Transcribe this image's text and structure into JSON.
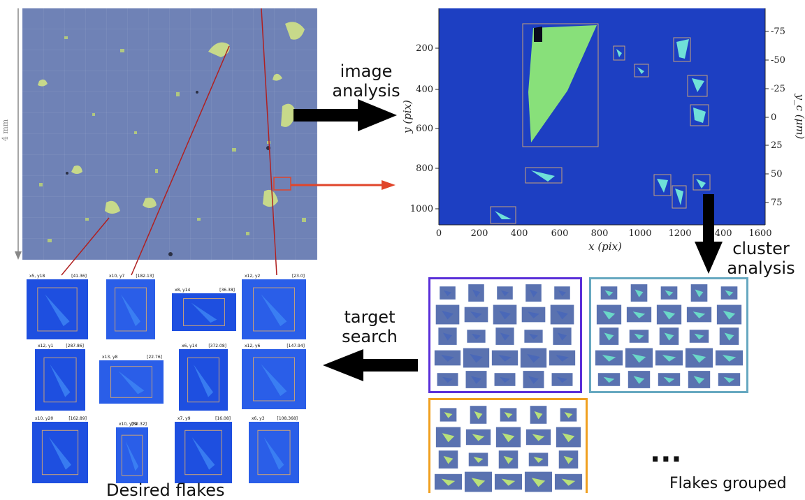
{
  "annotations": {
    "scale_bar": "4 mm",
    "image_analysis": [
      "image",
      "analysis"
    ],
    "cluster_analysis": [
      "cluster",
      "analysis"
    ],
    "target_search": [
      "target",
      "search"
    ],
    "desired_flakes": "Desired flakes",
    "flakes_grouped": "Flakes grouped",
    "ellipsis": "..."
  },
  "plot": {
    "xlabel": "x (pix)",
    "ylabel": "y (pix)",
    "y2label": "y_c (μm)",
    "x_ticks": [
      "0",
      "200",
      "400",
      "600",
      "800",
      "1000",
      "1200",
      "1400",
      "1600"
    ],
    "y_ticks": [
      "200",
      "400",
      "600",
      "800",
      "1000"
    ],
    "y2_ticks": [
      "-75",
      "-50",
      "-25",
      "0",
      "25",
      "50",
      "75"
    ]
  },
  "thumbnails": [
    {
      "title": "x5, y18",
      "id": "[41.36]"
    },
    {
      "title": "x10, y7",
      "id": "[182.13]"
    },
    {
      "title": "x8, y14",
      "id": "[36.38]"
    },
    {
      "title": "x12, y2",
      "id": "[23.0]"
    },
    {
      "title": "x12, y1",
      "id": "[287.86]"
    },
    {
      "title": "x13, y8",
      "id": "[22.76]"
    },
    {
      "title": "x6, y14",
      "id": "[372.08]"
    },
    {
      "title": "x12, y6",
      "id": "[147.94]"
    },
    {
      "title": "x10, y20",
      "id": "[162.89]"
    },
    {
      "title": "x10, y19",
      "id": "[52.32]"
    },
    {
      "title": "x7, y9",
      "id": "[16.08]"
    },
    {
      "title": "x6, y3",
      "id": "[108.368]"
    }
  ],
  "colors": {
    "red_line": "#b02020",
    "orange_arrow": "#e0452a",
    "black_arrow": "#000000",
    "cluster_purple": "#5a2fd8",
    "cluster_teal": "#66a8c0",
    "cluster_orange": "#f0a020"
  }
}
